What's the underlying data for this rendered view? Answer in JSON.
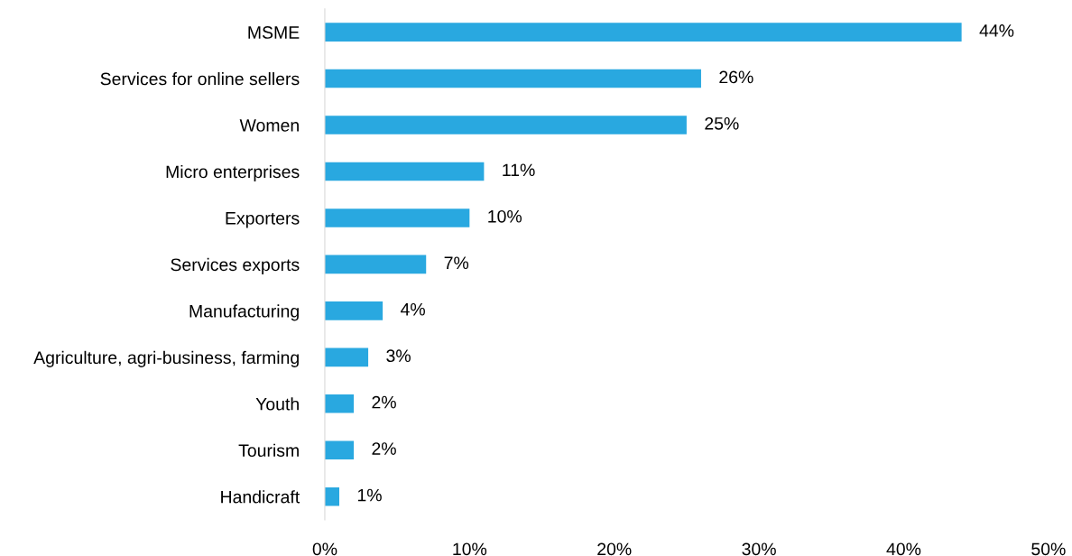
{
  "chart_data": {
    "type": "bar",
    "orientation": "horizontal",
    "categories": [
      "MSME",
      "Services for online sellers",
      "Women",
      "Micro enterprises",
      "Exporters",
      "Services exports",
      "Manufacturing",
      "Agriculture, agri-business, farming",
      "Youth",
      "Tourism",
      "Handicraft"
    ],
    "values": [
      44,
      26,
      25,
      11,
      10,
      7,
      4,
      3,
      2,
      2,
      1
    ],
    "value_labels": [
      "44%",
      "26%",
      "25%",
      "11%",
      "10%",
      "7%",
      "4%",
      "3%",
      "2%",
      "2%",
      "1%"
    ],
    "color": "#29a8e0",
    "xlim": [
      0,
      50
    ],
    "xticks": [
      {
        "value": 0,
        "label": "0%"
      },
      {
        "value": 10,
        "label": "10%"
      },
      {
        "value": 20,
        "label": "20%"
      },
      {
        "value": 30,
        "label": "30%"
      },
      {
        "value": 40,
        "label": "40%"
      },
      {
        "value": 50,
        "label": "50%"
      }
    ],
    "grid": false,
    "legend": false
  }
}
